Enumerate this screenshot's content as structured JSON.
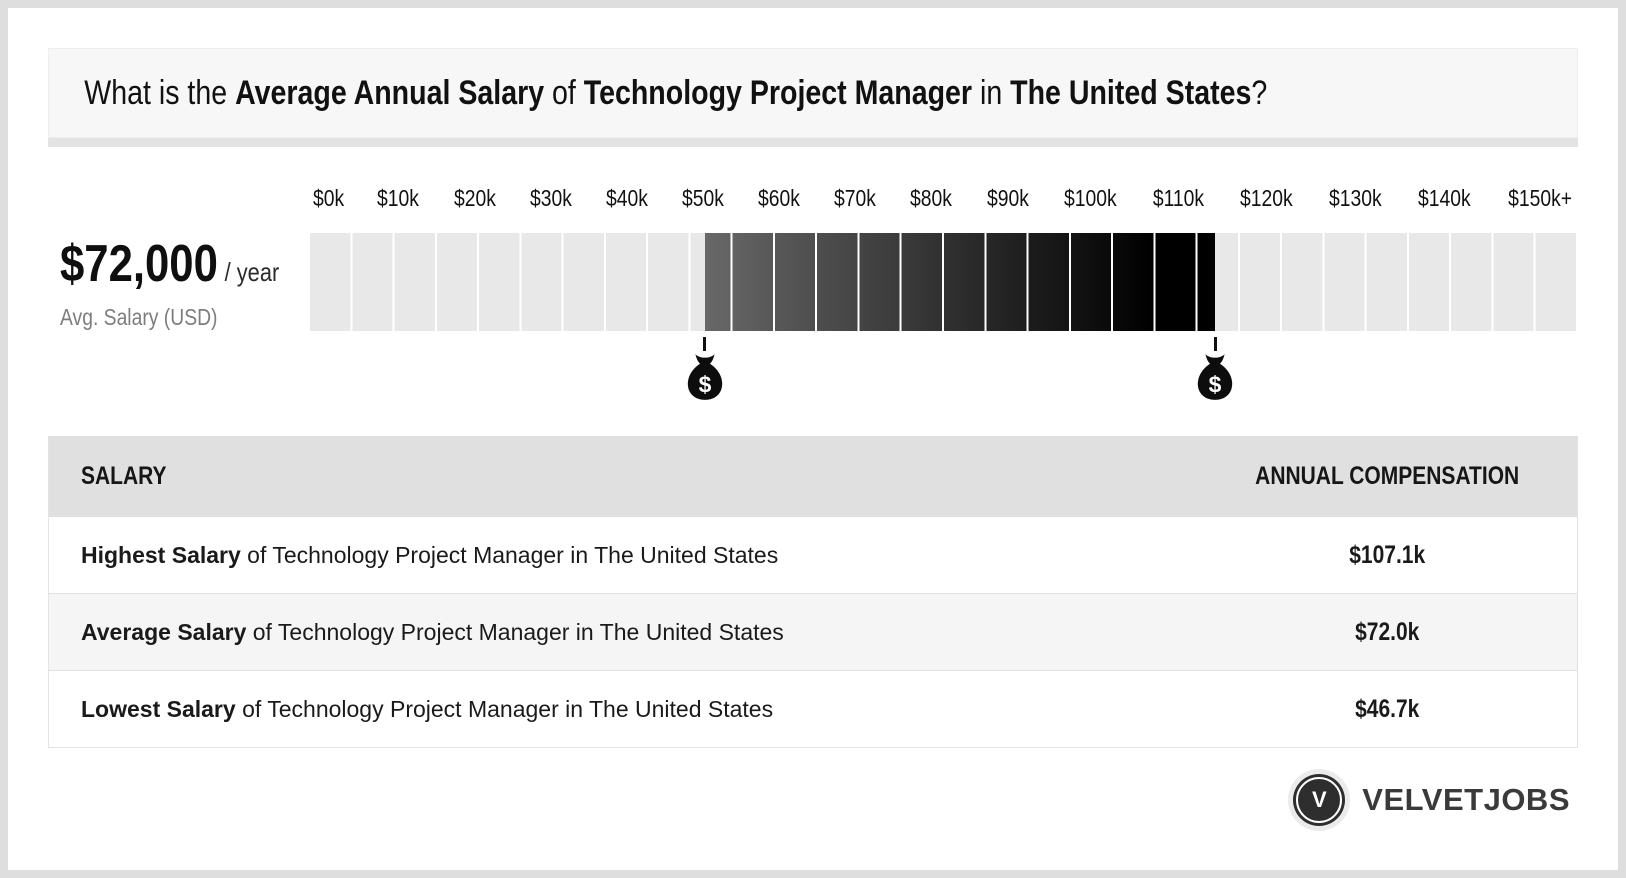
{
  "header": {
    "prefix": "What is the ",
    "bold1": "Average Annual Salary",
    "mid1": " of ",
    "bold2": "Technology Project Manager",
    "mid2": " in ",
    "bold3": "The United States",
    "suffix": "?"
  },
  "summary": {
    "amount": "$72,000",
    "per": "/ year",
    "caption": "Avg. Salary (USD)"
  },
  "chart_data": {
    "type": "bar",
    "title": "Average Annual Salary of Technology Project Manager in The United States",
    "unit": "USD (thousands) per year",
    "axis": {
      "min_k": 0,
      "max_k": 150,
      "tick_labels": [
        "$0k",
        "$10k",
        "$20k",
        "$30k",
        "$40k",
        "$50k",
        "$60k",
        "$70k",
        "$80k",
        "$90k",
        "$100k",
        "$110k",
        "$120k",
        "$130k",
        "$140k",
        "$150k+"
      ],
      "segment_step_k": 5,
      "segments": 30
    },
    "cell_color": "#e8e8e8",
    "highlight": {
      "start_k": 46.7,
      "end_k": 107.1,
      "gradient": [
        "#686868",
        "#000000"
      ]
    },
    "markers": [
      {
        "name": "lowest-salary",
        "value_k": 46.7
      },
      {
        "name": "highest-salary",
        "value_k": 107.1
      }
    ],
    "series": [
      {
        "name": "Highest Salary",
        "value_k": 107.1
      },
      {
        "name": "Average Salary",
        "value_k": 72.0
      },
      {
        "name": "Lowest Salary",
        "value_k": 46.7
      }
    ]
  },
  "table": {
    "headers": [
      "SALARY",
      "ANNUAL COMPENSATION"
    ],
    "rows": [
      {
        "lead": "Highest Salary",
        "rest": " of Technology Project Manager in The United States",
        "value": "$107.1k"
      },
      {
        "lead": "Average Salary",
        "rest": " of Technology Project Manager in The United States",
        "value": "$72.0k"
      },
      {
        "lead": "Lowest Salary",
        "rest": " of Technology Project Manager in The United States",
        "value": "$46.7k"
      }
    ]
  },
  "footer": {
    "brand": "VELVETJOBS",
    "logo_letter": "V"
  }
}
